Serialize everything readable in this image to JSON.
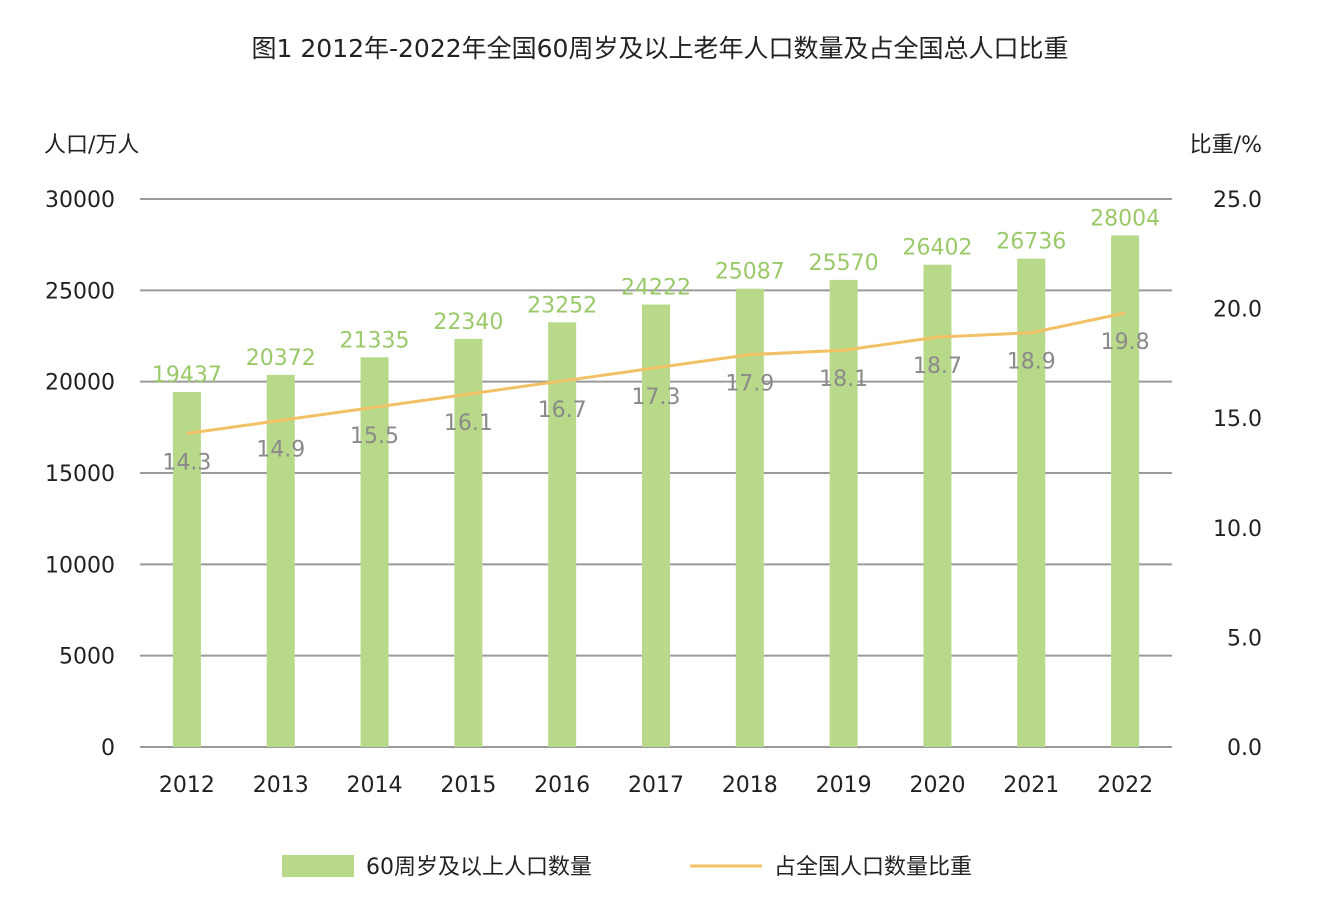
{
  "chart_data": {
    "type": "bar",
    "title": "图1 2012年-2022年全国60周岁及以上老年人口数量及占全国总人口比重",
    "ylabel_left": "人口/万人",
    "ylabel_right": "比重/%",
    "categories": [
      "2012",
      "2013",
      "2014",
      "2015",
      "2016",
      "2017",
      "2018",
      "2019",
      "2020",
      "2021",
      "2022"
    ],
    "ylim_left": [
      0,
      30000
    ],
    "yticks_left": [
      "0",
      "5000",
      "10000",
      "15000",
      "20000",
      "25000",
      "30000"
    ],
    "ylim_right": [
      0,
      25
    ],
    "yticks_right": [
      "0.0",
      "5.0",
      "10.0",
      "15.0",
      "20.0",
      "25.0"
    ],
    "grid": true,
    "legend_position": "bottom",
    "series": [
      {
        "name": "60周岁及以上人口数量",
        "type": "bar",
        "axis": "left",
        "color": "#b9d98a",
        "values": [
          19437,
          20372,
          21335,
          22340,
          23252,
          24222,
          25087,
          25570,
          26402,
          26736,
          28004
        ],
        "labels": [
          "19437",
          "20372",
          "21335",
          "22340",
          "23252",
          "24222",
          "25087",
          "25570",
          "26402",
          "26736",
          "28004"
        ]
      },
      {
        "name": "占全国人口数量比重",
        "type": "line",
        "axis": "right",
        "color": "#f2c165",
        "values": [
          14.3,
          14.9,
          15.5,
          16.1,
          16.7,
          17.3,
          17.9,
          18.1,
          18.7,
          18.9,
          19.8
        ],
        "labels": [
          "14.3",
          "14.9",
          "15.5",
          "16.1",
          "16.7",
          "17.3",
          "17.9",
          "18.1",
          "18.7",
          "18.9",
          "19.8"
        ]
      }
    ],
    "colors": {
      "grid": "#9a9a9a",
      "axis_text": "#222222",
      "bar_label": "#9bc96a",
      "line_label": "#8a8a8a",
      "watermark": "#d4e3ee"
    }
  }
}
